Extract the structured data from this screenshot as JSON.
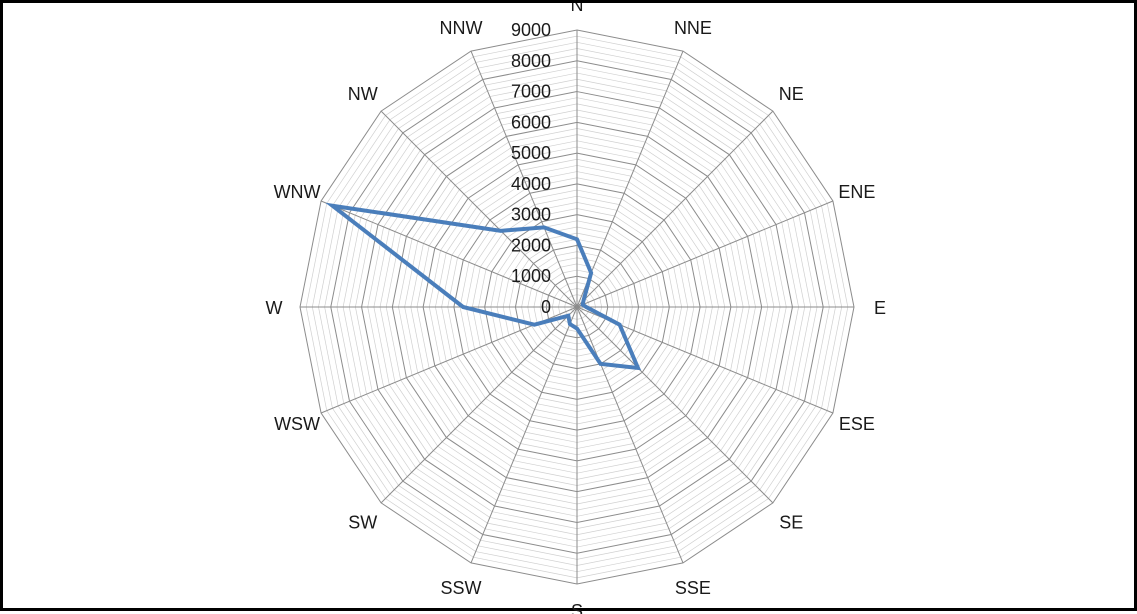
{
  "chart_data": {
    "type": "radar",
    "categories": [
      "N",
      "NNE",
      "NE",
      "ENE",
      "E",
      "ESE",
      "SE",
      "SSE",
      "S",
      "SSW",
      "SW",
      "WSW",
      "W",
      "WNW",
      "NW",
      "NNW"
    ],
    "series": [
      {
        "values": [
          2200,
          1200,
          300,
          200,
          300,
          1500,
          2800,
          2000,
          700,
          600,
          400,
          1500,
          3700,
          8600,
          3500,
          2800
        ]
      }
    ],
    "rlim": [
      0,
      9000
    ],
    "ticks": [
      0,
      1000,
      2000,
      3000,
      4000,
      5000,
      6000,
      7000,
      8000,
      9000
    ],
    "minor_step": 200,
    "grid": true,
    "colors": {
      "series": "#4A7EBB",
      "major_grid": "#8c8c8c",
      "minor_grid": "#d0d0d0"
    }
  }
}
